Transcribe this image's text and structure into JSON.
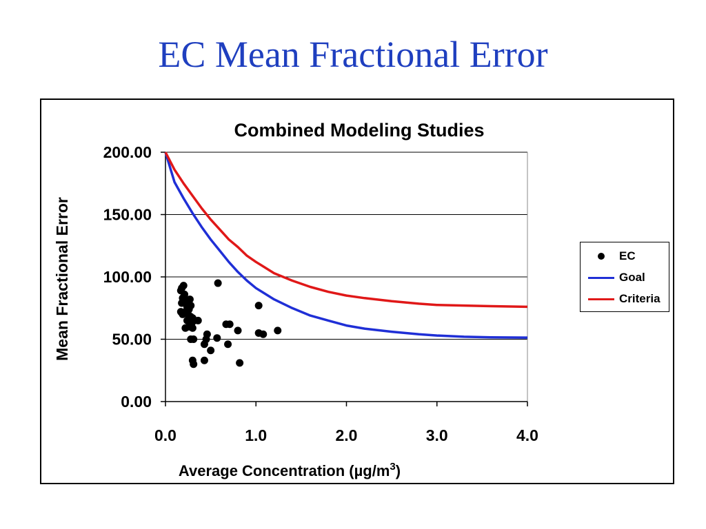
{
  "slide": {
    "title": "EC Mean Fractional Error"
  },
  "legend": {
    "items": [
      {
        "label": "EC",
        "marker": "dot",
        "color": "#000000"
      },
      {
        "label": "Goal",
        "marker": "line",
        "color": "#1f2fd6"
      },
      {
        "label": "Criteria",
        "marker": "line",
        "color": "#e01818"
      }
    ]
  },
  "chart_data": {
    "type": "scatter",
    "title": "Combined Modeling Studies",
    "xlabel": "Average Concentration (µg/m",
    "xlabel_sup": "3",
    "xlabel_end": ")",
    "ylabel": "Mean Fractional Error",
    "xlim": [
      0,
      4
    ],
    "ylim": [
      0,
      200
    ],
    "x_ticks": [
      "0.0",
      "1.0",
      "2.0",
      "3.0",
      "4.0"
    ],
    "y_ticks": [
      "0.00",
      "50.00",
      "100.00",
      "150.00",
      "200.00"
    ],
    "grid": "horizontal",
    "legend_position": "right",
    "series": [
      {
        "name": "EC",
        "kind": "scatter",
        "color": "#000000",
        "points": [
          [
            0.17,
            89
          ],
          [
            0.18,
            91
          ],
          [
            0.2,
            93
          ],
          [
            0.21,
            86
          ],
          [
            0.19,
            83
          ],
          [
            0.22,
            82
          ],
          [
            0.18,
            79
          ],
          [
            0.2,
            80
          ],
          [
            0.23,
            78
          ],
          [
            0.25,
            80
          ],
          [
            0.27,
            82
          ],
          [
            0.24,
            76
          ],
          [
            0.26,
            74
          ],
          [
            0.28,
            77
          ],
          [
            0.22,
            72
          ],
          [
            0.17,
            72
          ],
          [
            0.19,
            70
          ],
          [
            0.25,
            70
          ],
          [
            0.28,
            68
          ],
          [
            0.3,
            67
          ],
          [
            0.24,
            65
          ],
          [
            0.27,
            64
          ],
          [
            0.29,
            63
          ],
          [
            0.32,
            65
          ],
          [
            0.36,
            65
          ],
          [
            0.22,
            59
          ],
          [
            0.26,
            60
          ],
          [
            0.3,
            59
          ],
          [
            0.28,
            50
          ],
          [
            0.31,
            50
          ],
          [
            0.3,
            33
          ],
          [
            0.31,
            30
          ],
          [
            0.43,
            33
          ],
          [
            0.43,
            46
          ],
          [
            0.45,
            50
          ],
          [
            0.46,
            54
          ],
          [
            0.5,
            41
          ],
          [
            0.57,
            51
          ],
          [
            0.58,
            95
          ],
          [
            0.67,
            62
          ],
          [
            0.71,
            62
          ],
          [
            0.69,
            46
          ],
          [
            0.8,
            57
          ],
          [
            0.82,
            31
          ],
          [
            1.03,
            77
          ],
          [
            1.03,
            55
          ],
          [
            1.08,
            54
          ],
          [
            1.24,
            57
          ]
        ]
      },
      {
        "name": "Goal",
        "kind": "line",
        "color": "#1f2fd6",
        "points": [
          [
            0,
            200
          ],
          [
            0.1,
            176
          ],
          [
            0.2,
            163
          ],
          [
            0.3,
            151
          ],
          [
            0.4,
            140
          ],
          [
            0.5,
            130
          ],
          [
            0.6,
            121
          ],
          [
            0.7,
            112
          ],
          [
            0.8,
            104
          ],
          [
            0.9,
            97
          ],
          [
            1.0,
            91
          ],
          [
            1.2,
            82
          ],
          [
            1.4,
            75
          ],
          [
            1.6,
            69
          ],
          [
            1.8,
            65
          ],
          [
            2.0,
            61
          ],
          [
            2.2,
            58.5
          ],
          [
            2.5,
            56
          ],
          [
            2.8,
            54
          ],
          [
            3.0,
            53
          ],
          [
            3.3,
            52
          ],
          [
            3.6,
            51.5
          ],
          [
            4.0,
            51.3
          ]
        ]
      },
      {
        "name": "Criteria",
        "kind": "line",
        "color": "#e01818",
        "points": [
          [
            0,
            200
          ],
          [
            0.1,
            186
          ],
          [
            0.2,
            175
          ],
          [
            0.3,
            165
          ],
          [
            0.4,
            155
          ],
          [
            0.5,
            146
          ],
          [
            0.6,
            138
          ],
          [
            0.7,
            130
          ],
          [
            0.8,
            124
          ],
          [
            0.9,
            117
          ],
          [
            1.0,
            112
          ],
          [
            1.2,
            103
          ],
          [
            1.4,
            97
          ],
          [
            1.6,
            92
          ],
          [
            1.8,
            88
          ],
          [
            2.0,
            85
          ],
          [
            2.2,
            83
          ],
          [
            2.5,
            80.5
          ],
          [
            2.8,
            78.5
          ],
          [
            3.0,
            77.5
          ],
          [
            3.3,
            77
          ],
          [
            3.6,
            76.5
          ],
          [
            4.0,
            76
          ]
        ]
      }
    ]
  }
}
